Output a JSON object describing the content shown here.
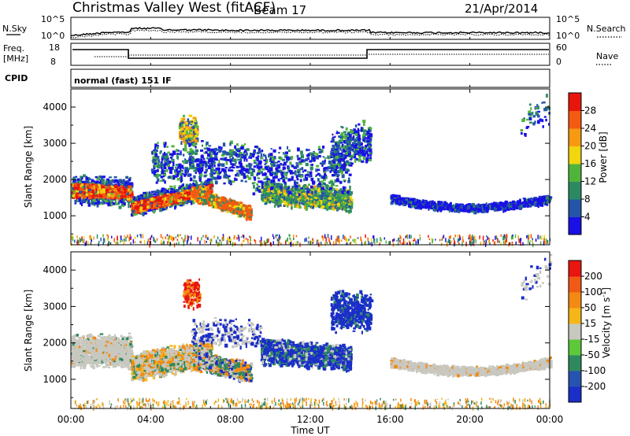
{
  "header": {
    "title": "Christmas Valley West (fitACF)",
    "beam": "Beam 17",
    "date": "21/Apr/2014"
  },
  "param_panels": {
    "nsky_label": "N.Sky",
    "nsky_ticks": [
      "10^5",
      "10^0"
    ],
    "nsearch_label": "N.Search",
    "nsearch_ticks": [
      "10^5",
      "10^0"
    ],
    "freq_label": "Freq.",
    "freq_unit": "[MHz]",
    "freq_ticks": [
      "18",
      "8"
    ],
    "nave_label": "Nave",
    "nave_ticks": [
      "60",
      "0"
    ],
    "cpid_label": "CPID",
    "cpid_text": "normal (fast) 151 IF"
  },
  "chart_data": [
    {
      "type": "heatmap",
      "name": "power",
      "ylabel": "Slant Range [km]",
      "xlabel": "Time UT",
      "xlim": [
        "00:00",
        "24:00"
      ],
      "ylim": [
        200,
        4500
      ],
      "yticks": [
        "1000",
        "2000",
        "3000",
        "4000"
      ],
      "colorbar": {
        "label": "Power [dB]",
        "ticks": [
          "4",
          "8",
          "12",
          "16",
          "20",
          "24",
          "28"
        ],
        "colors": [
          "#1a10e6",
          "#2356a8",
          "#2c8a63",
          "#4fb53a",
          "#f2d60e",
          "#f79a12",
          "#f45a12",
          "#e8150d"
        ]
      }
    },
    {
      "type": "heatmap",
      "name": "velocity",
      "ylabel": "Slant Range [km]",
      "xlabel": "Time UT",
      "xlim": [
        "00:00",
        "24:00"
      ],
      "ylim": [
        200,
        4500
      ],
      "yticks": [
        "1000",
        "2000",
        "3000",
        "4000"
      ],
      "colorbar": {
        "label": "Velocity [m s",
        "label_sup": "-1",
        "label_close": "]",
        "ticks": [
          "200",
          "100",
          "50",
          "15",
          "-15",
          "-50",
          "-100",
          "-200"
        ],
        "colors": [
          "#1b2ec8",
          "#2753b0",
          "#2e8a5e",
          "#5cc83a",
          "#c8c8c0",
          "#f5b718",
          "#f38a14",
          "#f05a14",
          "#e81510"
        ]
      }
    }
  ],
  "x_axis": {
    "ticks": [
      "00:00",
      "04:00",
      "08:00",
      "12:00",
      "16:00",
      "20:00",
      "00:00"
    ],
    "label": "Time UT"
  },
  "scatter_colors": {
    "power_scale": [
      "#1a10e6",
      "#2356a8",
      "#2c8a63",
      "#4fb53a",
      "#f2d60e",
      "#f79a12",
      "#f45a12",
      "#e8150d"
    ],
    "vel_grey": "#c8c8c0",
    "vel_blue": "#1b2ec8",
    "vel_orange": "#f38a14",
    "vel_green": "#2e8a5e",
    "vel_red": "#e81510",
    "noise": "#6a6a6a"
  }
}
